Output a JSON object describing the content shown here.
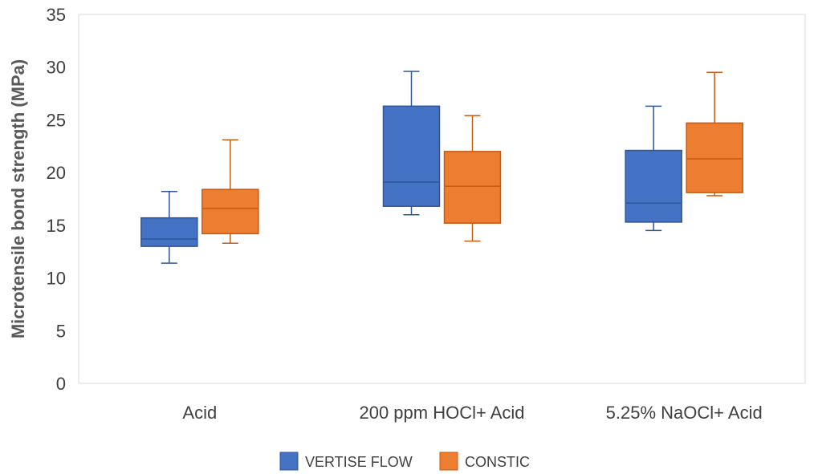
{
  "chart_data": {
    "type": "boxplot",
    "title": "",
    "ylabel": "Microtensile bond strength (MPa)",
    "xlabel": "",
    "ylim": [
      0,
      35
    ],
    "yticks": [
      0,
      5,
      10,
      15,
      20,
      25,
      30,
      35
    ],
    "grid": false,
    "legend_position": "bottom",
    "categories": [
      "Acid",
      "200 ppm HOCl+ Acid",
      "5.25% NaOCl+ Acid"
    ],
    "series": [
      {
        "name": "VERTISE FLOW",
        "color": "#4472C4",
        "stroke": "#2F5597",
        "boxes": [
          {
            "min": 11.4,
            "q1": 13.0,
            "median": 13.7,
            "q3": 15.7,
            "max": 18.2
          },
          {
            "min": 16.0,
            "q1": 16.8,
            "median": 19.1,
            "q3": 26.3,
            "max": 29.6
          },
          {
            "min": 14.5,
            "q1": 15.3,
            "median": 17.1,
            "q3": 22.1,
            "max": 26.3
          }
        ]
      },
      {
        "name": "CONSTIC",
        "color": "#ED7D31",
        "stroke": "#C55A11",
        "boxes": [
          {
            "min": 13.3,
            "q1": 14.2,
            "median": 16.6,
            "q3": 18.4,
            "max": 23.1
          },
          {
            "min": 13.5,
            "q1": 15.2,
            "median": 18.7,
            "q3": 22.0,
            "max": 25.4
          },
          {
            "min": 17.8,
            "q1": 18.1,
            "median": 21.3,
            "q3": 24.7,
            "max": 29.5
          }
        ]
      }
    ]
  }
}
